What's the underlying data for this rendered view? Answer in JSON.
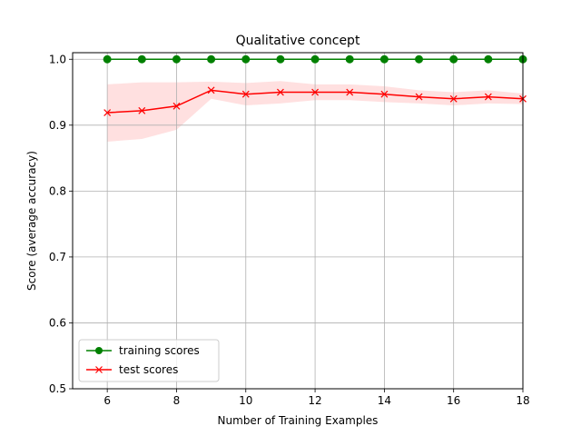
{
  "chart_data": {
    "type": "line",
    "title": "Qualitative concept",
    "xlabel": "Number of Training Examples",
    "ylabel": "Score (average accuracy)",
    "xlim": [
      5,
      18
    ],
    "ylim": [
      0.5,
      1.01
    ],
    "xticks": [
      6,
      8,
      10,
      12,
      14,
      16,
      18
    ],
    "yticks": [
      0.5,
      0.6,
      0.7,
      0.8,
      0.9,
      1.0
    ],
    "grid": true,
    "legend_position": "lower-left",
    "x": [
      6,
      7,
      8,
      9,
      10,
      11,
      12,
      13,
      14,
      15,
      16,
      17,
      18
    ],
    "series": [
      {
        "name": "training scores",
        "color": "#008000",
        "marker": "circle",
        "values": [
          1.0,
          1.0,
          1.0,
          1.0,
          1.0,
          1.0,
          1.0,
          1.0,
          1.0,
          1.0,
          1.0,
          1.0,
          1.0
        ]
      },
      {
        "name": "test scores",
        "color": "#ff0000",
        "marker": "x",
        "values": [
          0.919,
          0.922,
          0.929,
          0.953,
          0.947,
          0.95,
          0.95,
          0.95,
          0.947,
          0.943,
          0.94,
          0.943,
          0.94
        ],
        "band_color": "#ff0000",
        "band_lower": [
          0.875,
          0.879,
          0.893,
          0.94,
          0.93,
          0.933,
          0.938,
          0.938,
          0.935,
          0.933,
          0.93,
          0.933,
          0.932
        ],
        "band_upper": [
          0.962,
          0.965,
          0.965,
          0.966,
          0.964,
          0.967,
          0.962,
          0.962,
          0.959,
          0.953,
          0.95,
          0.953,
          0.948
        ]
      }
    ]
  }
}
